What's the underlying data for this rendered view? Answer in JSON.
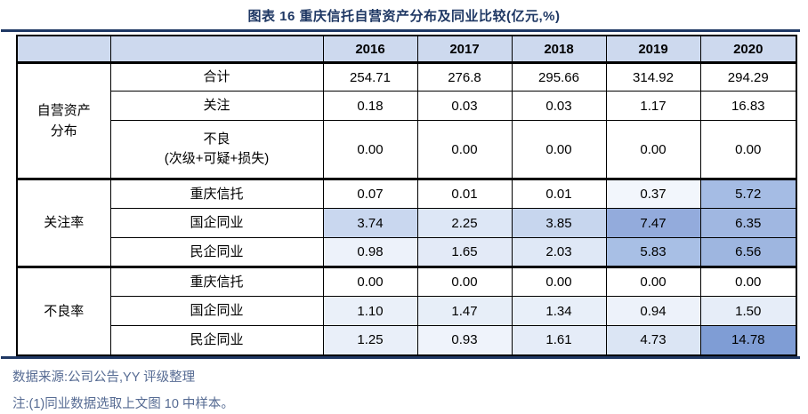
{
  "title": "图表 16 重庆信托自营资产分布及同业比较(亿元,%)",
  "colors": {
    "title_navy": "#1F3864",
    "rule_navy": "#1F3864",
    "header_bg": "#CDD9EE",
    "border": "#000000",
    "footer_text": "#566B93",
    "heat_dark_max": "#7F9DD5"
  },
  "chart_data": {
    "type": "table",
    "title": "图表 16 重庆信托自营资产分布及同业比较(亿元,%)",
    "unit_note": "亿元,%",
    "columns": [
      "",
      "",
      "2016",
      "2017",
      "2018",
      "2019",
      "2020"
    ],
    "sections": [
      {
        "group": [
          "自营资产",
          "分布"
        ],
        "rows": [
          {
            "label": [
              "合计"
            ],
            "values": [
              "254.71",
              "276.8",
              "295.66",
              "314.92",
              "294.29"
            ],
            "bg": [
              "#FFFFFF",
              "#FFFFFF",
              "#FFFFFF",
              "#FFFFFF",
              "#FFFFFF"
            ]
          },
          {
            "label": [
              "关注"
            ],
            "values": [
              "0.18",
              "0.03",
              "0.03",
              "1.17",
              "16.83"
            ],
            "bg": [
              "#FFFFFF",
              "#FFFFFF",
              "#FFFFFF",
              "#FFFFFF",
              "#FFFFFF"
            ]
          },
          {
            "label": [
              "不良",
              "(次级+可疑+损失)"
            ],
            "values": [
              "0.00",
              "0.00",
              "0.00",
              "0.00",
              "0.00"
            ],
            "bg": [
              "#FFFFFF",
              "#FFFFFF",
              "#FFFFFF",
              "#FFFFFF",
              "#FFFFFF"
            ]
          }
        ]
      },
      {
        "group": [
          "关注率"
        ],
        "rows": [
          {
            "label": [
              "重庆信托"
            ],
            "values": [
              "0.07",
              "0.01",
              "0.01",
              "0.37",
              "5.72"
            ],
            "bg": [
              "#FFFFFF",
              "#FFFFFF",
              "#FFFFFF",
              "#F2F6FC",
              "#A5BCE4"
            ]
          },
          {
            "label": [
              "国企同业"
            ],
            "values": [
              "3.74",
              "2.25",
              "3.85",
              "7.47",
              "6.35"
            ],
            "bg": [
              "#C9D7EF",
              "#DDE7F6",
              "#C7D6EE",
              "#93ABDC",
              "#A0B7E1"
            ]
          },
          {
            "label": [
              "民企同业"
            ],
            "values": [
              "0.98",
              "1.65",
              "2.03",
              "5.83",
              "6.56"
            ],
            "bg": [
              "#EDF2FA",
              "#E3EAF7",
              "#DFE8F6",
              "#A8BFE5",
              "#9EB6E0"
            ]
          }
        ]
      },
      {
        "group": [
          "不良率"
        ],
        "rows": [
          {
            "label": [
              "重庆信托"
            ],
            "values": [
              "0.00",
              "0.00",
              "0.00",
              "0.00",
              "0.00"
            ],
            "bg": [
              "#FFFFFF",
              "#FFFFFF",
              "#FFFFFF",
              "#FFFFFF",
              "#FFFFFF"
            ]
          },
          {
            "label": [
              "国企同业"
            ],
            "values": [
              "1.10",
              "1.47",
              "1.34",
              "0.94",
              "1.50"
            ],
            "bg": [
              "#EAF0F9",
              "#E7EEF8",
              "#E8EFF9",
              "#EDF2FA",
              "#E6EDF8"
            ]
          },
          {
            "label": [
              "民企同业"
            ],
            "values": [
              "1.25",
              "0.93",
              "1.61",
              "4.73",
              "14.78"
            ],
            "bg": [
              "#E9EFF9",
              "#EFF3FB",
              "#E5ECF8",
              "#DBE5F4",
              "#7F9DD5"
            ]
          }
        ]
      }
    ]
  },
  "footer": {
    "source": "数据来源:公司公告,YY 评级整理",
    "note": "注:(1)同业数据选取上文图 10 中样本。"
  }
}
